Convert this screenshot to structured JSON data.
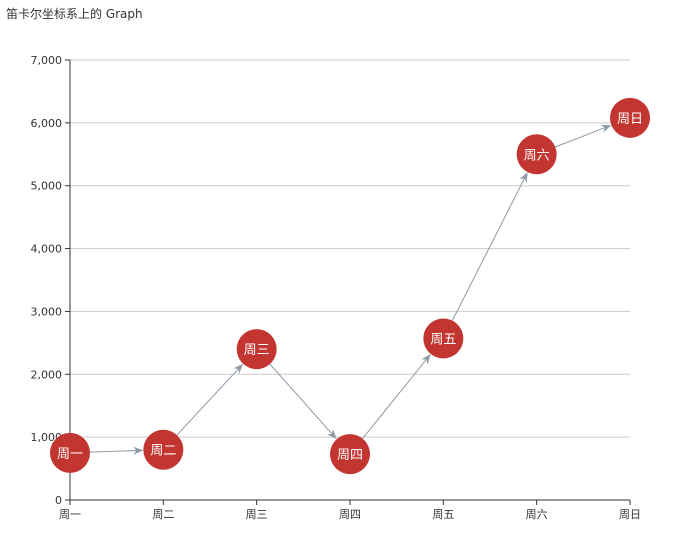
{
  "chart_data": {
    "type": "graph",
    "title": "笛卡尔坐标系上的 Graph",
    "categories": [
      "周一",
      "周二",
      "周三",
      "周四",
      "周五",
      "周六",
      "周日"
    ],
    "values": [
      750,
      800,
      2400,
      730,
      2570,
      5500,
      6080
    ],
    "nodes": [
      {
        "name": "周一",
        "x": "周一",
        "y": 750
      },
      {
        "name": "周二",
        "x": "周二",
        "y": 800
      },
      {
        "name": "周三",
        "x": "周三",
        "y": 2400
      },
      {
        "name": "周四",
        "x": "周四",
        "y": 730
      },
      {
        "name": "周五",
        "x": "周五",
        "y": 2570
      },
      {
        "name": "周六",
        "x": "周六",
        "y": 5500
      },
      {
        "name": "周日",
        "x": "周日",
        "y": 6080
      }
    ],
    "links": [
      {
        "source": "周一",
        "target": "周二"
      },
      {
        "source": "周二",
        "target": "周三"
      },
      {
        "source": "周三",
        "target": "周四"
      },
      {
        "source": "周四",
        "target": "周五"
      },
      {
        "source": "周五",
        "target": "周六"
      },
      {
        "source": "周六",
        "target": "周日"
      }
    ],
    "ylim": [
      0,
      7000
    ],
    "y_ticks": [
      0,
      1000,
      2000,
      3000,
      4000,
      5000,
      6000,
      7000
    ],
    "y_tick_labels": [
      "0",
      "1,000",
      "2,000",
      "3,000",
      "4,000",
      "5,000",
      "6,000",
      "7,000"
    ],
    "grid": true,
    "colors": {
      "node": "#c23531",
      "link": "#8e9aa6",
      "grid": "#cccccc",
      "axis": "#333333"
    }
  }
}
